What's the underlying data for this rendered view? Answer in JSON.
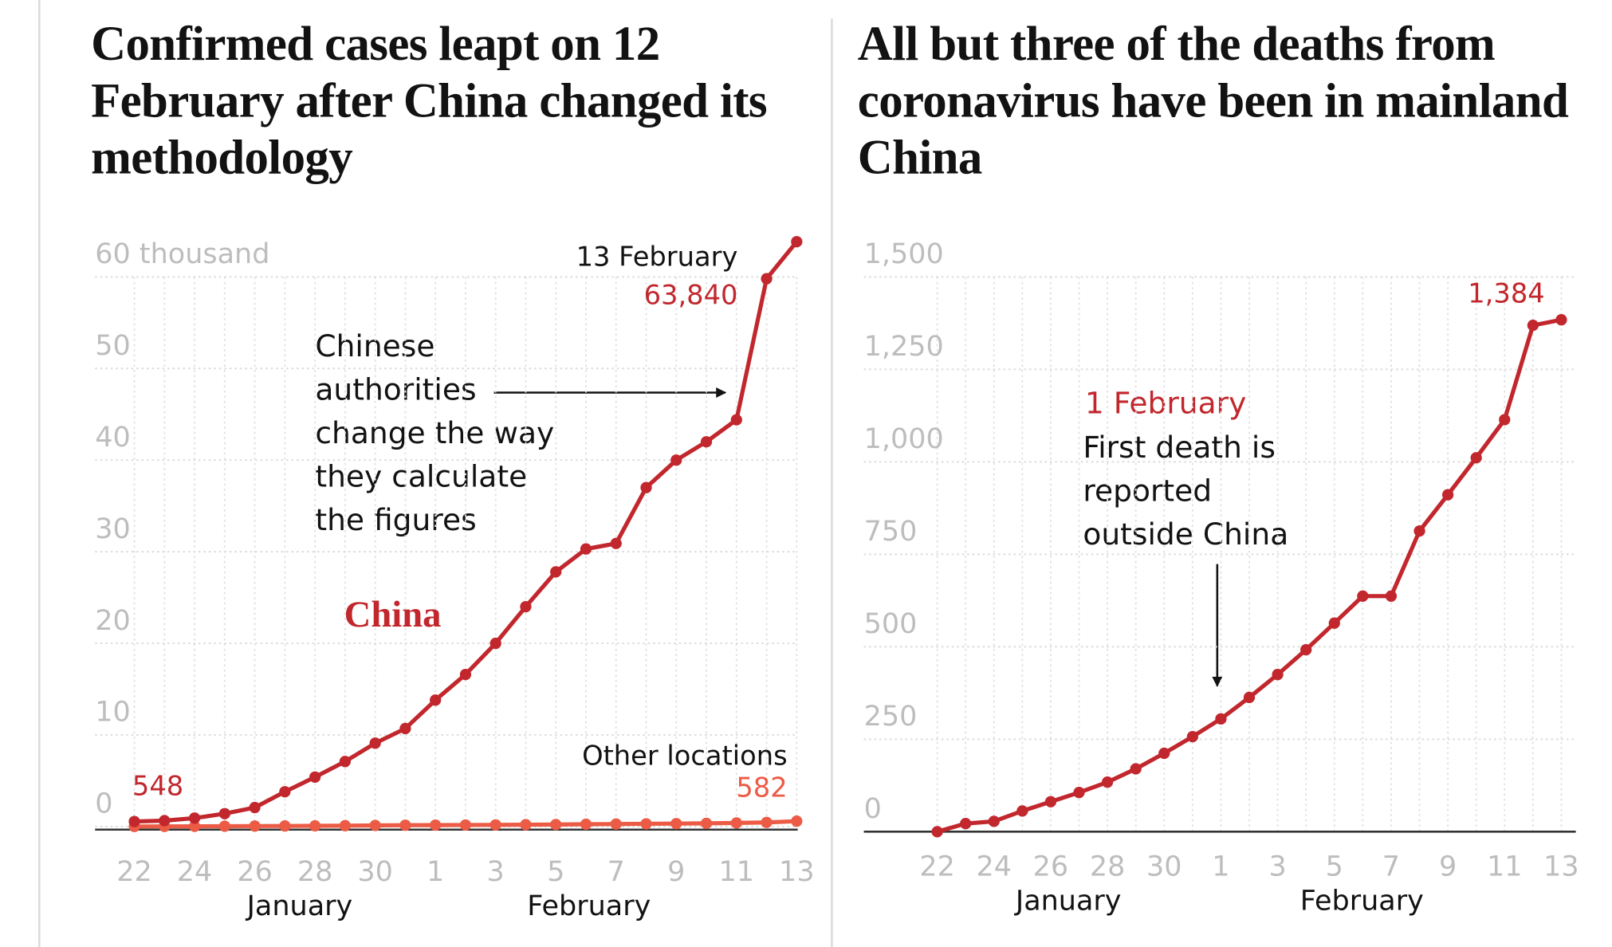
{
  "chart_data": [
    {
      "type": "line",
      "title": "Confirmed cases leapt on 12 February after China changed its methodology",
      "categories": [
        "22",
        null,
        "24",
        null,
        "26",
        null,
        "28",
        null,
        "30",
        null,
        "1",
        null,
        "3",
        null,
        "5",
        null,
        "7",
        null,
        "9",
        null,
        "11",
        null,
        "13"
      ],
      "month_labels": [
        "January",
        "February"
      ],
      "series": [
        {
          "name": "China",
          "color": "#c1272d",
          "values": [
            0.548,
            0.643,
            0.92,
            1.406,
            2.075,
            3.8,
            5.4,
            7.1,
            9.1,
            10.7,
            13.8,
            16.6,
            20.0,
            24.0,
            27.8,
            30.3,
            30.9,
            37.0,
            40.0,
            42.0,
            44.4,
            59.8,
            63.84
          ],
          "value_labels": [
            "548",
            null,
            null,
            null,
            null,
            null,
            null,
            null,
            null,
            null,
            null,
            null,
            null,
            null,
            null,
            null,
            null,
            null,
            null,
            null,
            null,
            null,
            "63,840"
          ]
        },
        {
          "name": "Other locations",
          "color": "#ec5b45",
          "values": [
            0.007,
            0.014,
            0.021,
            0.035,
            0.049,
            0.061,
            0.078,
            0.093,
            0.119,
            0.145,
            0.153,
            0.168,
            0.178,
            0.201,
            0.216,
            0.252,
            0.273,
            0.298,
            0.319,
            0.35,
            0.393,
            0.447,
            0.582
          ],
          "value_labels": [
            null,
            null,
            null,
            null,
            null,
            null,
            null,
            null,
            null,
            null,
            null,
            null,
            null,
            null,
            null,
            null,
            null,
            null,
            null,
            null,
            null,
            null,
            "582"
          ]
        }
      ],
      "annotations": [
        "13 February",
        "Chinese authorities change the way they calculate the figures"
      ],
      "ylim": [
        0,
        60
      ],
      "yticks": [
        0,
        10,
        20,
        30,
        40,
        50,
        {
          "value": 60,
          "label": "60 thousand"
        }
      ],
      "grid": true
    },
    {
      "type": "line",
      "title": "All but three of the deaths from coronavirus have been in mainland China",
      "categories": [
        "22",
        null,
        "24",
        null,
        "26",
        null,
        "28",
        null,
        "30",
        null,
        "1",
        null,
        "3",
        null,
        "5",
        null,
        "7",
        null,
        "9",
        null,
        "11",
        null,
        "13"
      ],
      "month_labels": [
        "January",
        "February"
      ],
      "series": [
        {
          "name": null,
          "color": "#c1272d",
          "values": [
            0,
            22,
            28,
            56,
            81,
            106,
            134,
            170,
            212,
            257,
            305,
            363,
            425,
            492,
            564,
            637,
            637,
            813,
            911,
            1011,
            1114,
            1369,
            1384
          ],
          "value_labels": [
            null,
            null,
            null,
            null,
            null,
            null,
            null,
            null,
            null,
            null,
            null,
            null,
            null,
            null,
            null,
            null,
            null,
            null,
            null,
            null,
            null,
            null,
            "1,384"
          ]
        }
      ],
      "annotations": [
        "1 February",
        "First death is reported outside China"
      ],
      "ylim": [
        0,
        1500
      ],
      "yticks": [
        0,
        250,
        500,
        750,
        {
          "value": 1000,
          "label": "1,000"
        },
        {
          "value": 1250,
          "label": "1,250"
        },
        {
          "value": 1500,
          "label": "1,500"
        }
      ],
      "grid": true
    }
  ]
}
